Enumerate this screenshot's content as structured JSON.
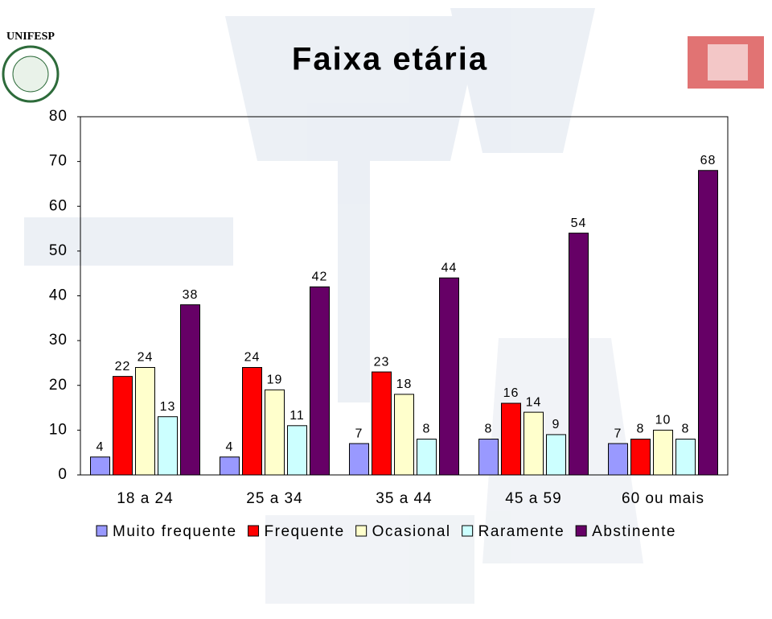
{
  "logo_text": "UNIFESP",
  "chart_data": {
    "type": "bar",
    "title": "Faixa etária",
    "categories": [
      "18 a 24",
      "25 a 34",
      "35 a 44",
      "45 a 59",
      "60 ou mais"
    ],
    "series": [
      {
        "name": "Muito frequente",
        "color": "#9999ff",
        "values": [
          4,
          4,
          7,
          8,
          7
        ]
      },
      {
        "name": "Frequente",
        "color": "#ff0000",
        "values": [
          22,
          24,
          23,
          16,
          8
        ]
      },
      {
        "name": "Ocasional",
        "color": "#ffffcc",
        "values": [
          24,
          19,
          18,
          14,
          10
        ]
      },
      {
        "name": "Raramente",
        "color": "#ccffff",
        "values": [
          13,
          11,
          8,
          9,
          8
        ]
      },
      {
        "name": "Abstinente",
        "color": "#660066",
        "values": [
          38,
          42,
          44,
          54,
          68
        ]
      }
    ],
    "ylim": [
      0,
      80
    ],
    "yticks": [
      0,
      10,
      20,
      30,
      40,
      50,
      60,
      70,
      80
    ],
    "grid": false
  }
}
